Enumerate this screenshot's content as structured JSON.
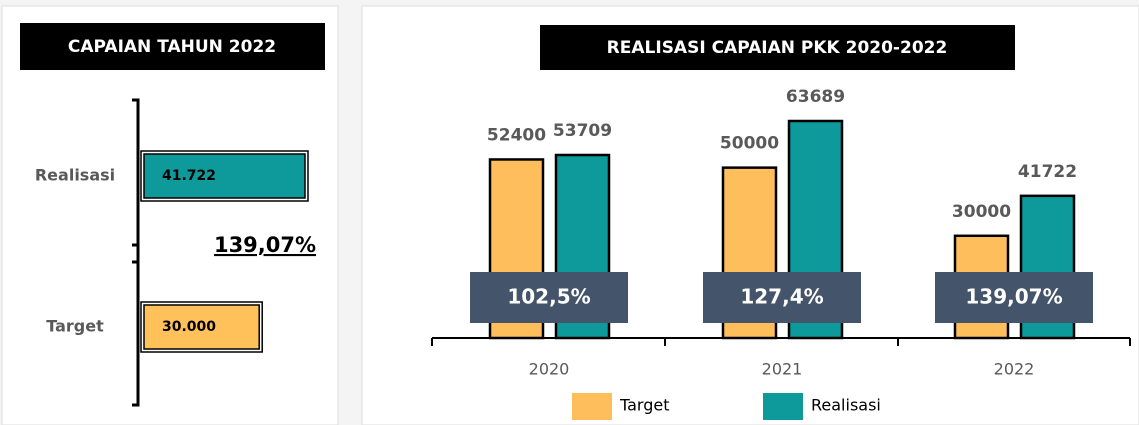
{
  "chart_data": [
    {
      "type": "hbar",
      "title": "CAPAIAN TAHUN 2022",
      "categories": [
        "Realisasi",
        "Target"
      ],
      "values": [
        41722,
        30000
      ],
      "value_labels": [
        "41.722",
        "30.000"
      ],
      "colors": [
        "#0e9a9a",
        "#ffc15a"
      ],
      "annotation": "139,07%"
    },
    {
      "type": "bar",
      "title": "REALISASI CAPAIAN PKK 2020-2022",
      "categories": [
        "2020",
        "2021",
        "2022"
      ],
      "series": [
        {
          "name": "Target",
          "color": "#ffbe5c",
          "values": [
            52400,
            50000,
            30000
          ]
        },
        {
          "name": "Realisasi",
          "color": "#0e9a9a",
          "values": [
            53709,
            63689,
            41722
          ]
        }
      ],
      "annotations": [
        "102,5%",
        "127,4%",
        "139,07%"
      ]
    }
  ]
}
